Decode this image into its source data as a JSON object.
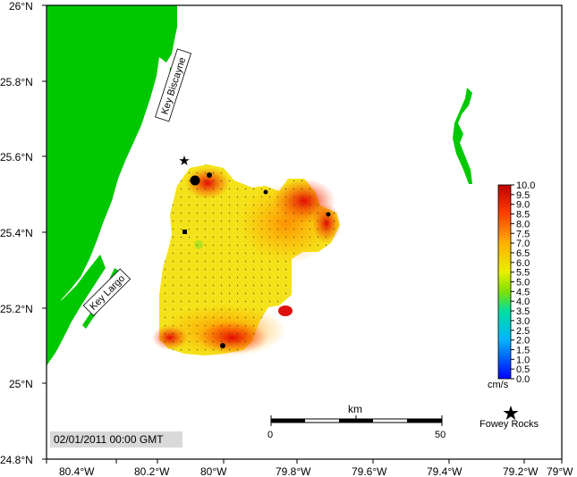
{
  "map": {
    "lat_labels": [
      "26°N",
      "25.8°N",
      "25.6°N",
      "25.4°N",
      "25.2°N",
      "25°N",
      "24.8°N"
    ],
    "lon_labels": [
      "80.4°W",
      "80.2°W",
      "80°W",
      "79.8°W",
      "79.6°W",
      "79.4°W",
      "79.2°W",
      "79°W"
    ],
    "places": [
      {
        "name": "Key Biscayne"
      },
      {
        "name": "Key Largo"
      },
      {
        "name": "Fowey Rocks"
      }
    ],
    "colors": {
      "land": "#00c800",
      "background": "#ffffff",
      "frame": "#000000"
    }
  },
  "colorbar": {
    "unit": "cm/s",
    "ticks": [
      "10.0",
      "9.5",
      "9.0",
      "8.5",
      "8.0",
      "7.5",
      "7.0",
      "6.5",
      "6.0",
      "5.5",
      "5.0",
      "4.5",
      "4.0",
      "3.5",
      "3.0",
      "2.5",
      "2.0",
      "1.5",
      "1.0",
      "0.5",
      "0.0"
    ],
    "min": 0.0,
    "max": 10.0
  },
  "scalebar": {
    "unit": "km",
    "start": "0",
    "end": "50"
  },
  "timestamp": "02/01/2011 00:00 GMT"
}
